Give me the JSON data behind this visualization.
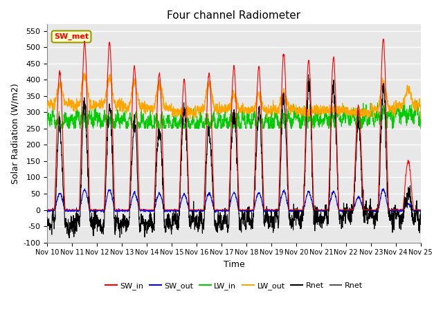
{
  "title": "Four channel Radiometer",
  "xlabel": "Time",
  "ylabel": "Solar Radiation (W/m2)",
  "ylim": [
    -100,
    570
  ],
  "yticks": [
    -100,
    -50,
    0,
    50,
    100,
    150,
    200,
    250,
    300,
    350,
    400,
    450,
    500,
    550
  ],
  "annotation_text": "SW_met",
  "plot_bg_color": "#e8e8e8",
  "fig_bg_color": "#ffffff",
  "grid_color": "#ffffff",
  "colors": {
    "SW_in": "#ff0000",
    "SW_out": "#0000ff",
    "LW_in": "#00cc00",
    "LW_out": "#ffa500",
    "Rnet": "#000000",
    "Rnet2": "#555555"
  },
  "n_days": 15,
  "x_start": 0,
  "x_end": 15,
  "xtick_labels": [
    "Nov 10",
    "Nov 11",
    "Nov 12",
    "Nov 13",
    "Nov 14",
    "Nov 15",
    "Nov 16",
    "Nov 17",
    "Nov 18",
    "Nov 19",
    "Nov 20",
    "Nov 21",
    "Nov 22",
    "Nov 23",
    "Nov 24",
    "Nov 25"
  ],
  "xtick_positions": [
    0,
    1,
    2,
    3,
    4,
    5,
    6,
    7,
    8,
    9,
    10,
    11,
    12,
    13,
    14,
    15
  ],
  "sw_in_peaks": [
    425,
    515,
    515,
    440,
    420,
    400,
    420,
    440,
    440,
    480,
    460,
    465,
    320,
    525,
    150
  ],
  "lw_out_peaks": [
    385,
    410,
    405,
    390,
    385,
    300,
    390,
    350,
    350,
    355,
    300,
    310,
    300,
    390,
    370
  ],
  "lw_out_base": [
    325,
    320,
    325,
    315,
    315,
    300,
    310,
    310,
    305,
    310,
    305,
    305,
    300,
    310,
    320
  ],
  "lw_in_base": [
    275,
    280,
    275,
    270,
    270,
    265,
    268,
    272,
    275,
    278,
    280,
    282,
    285,
    290,
    295
  ]
}
